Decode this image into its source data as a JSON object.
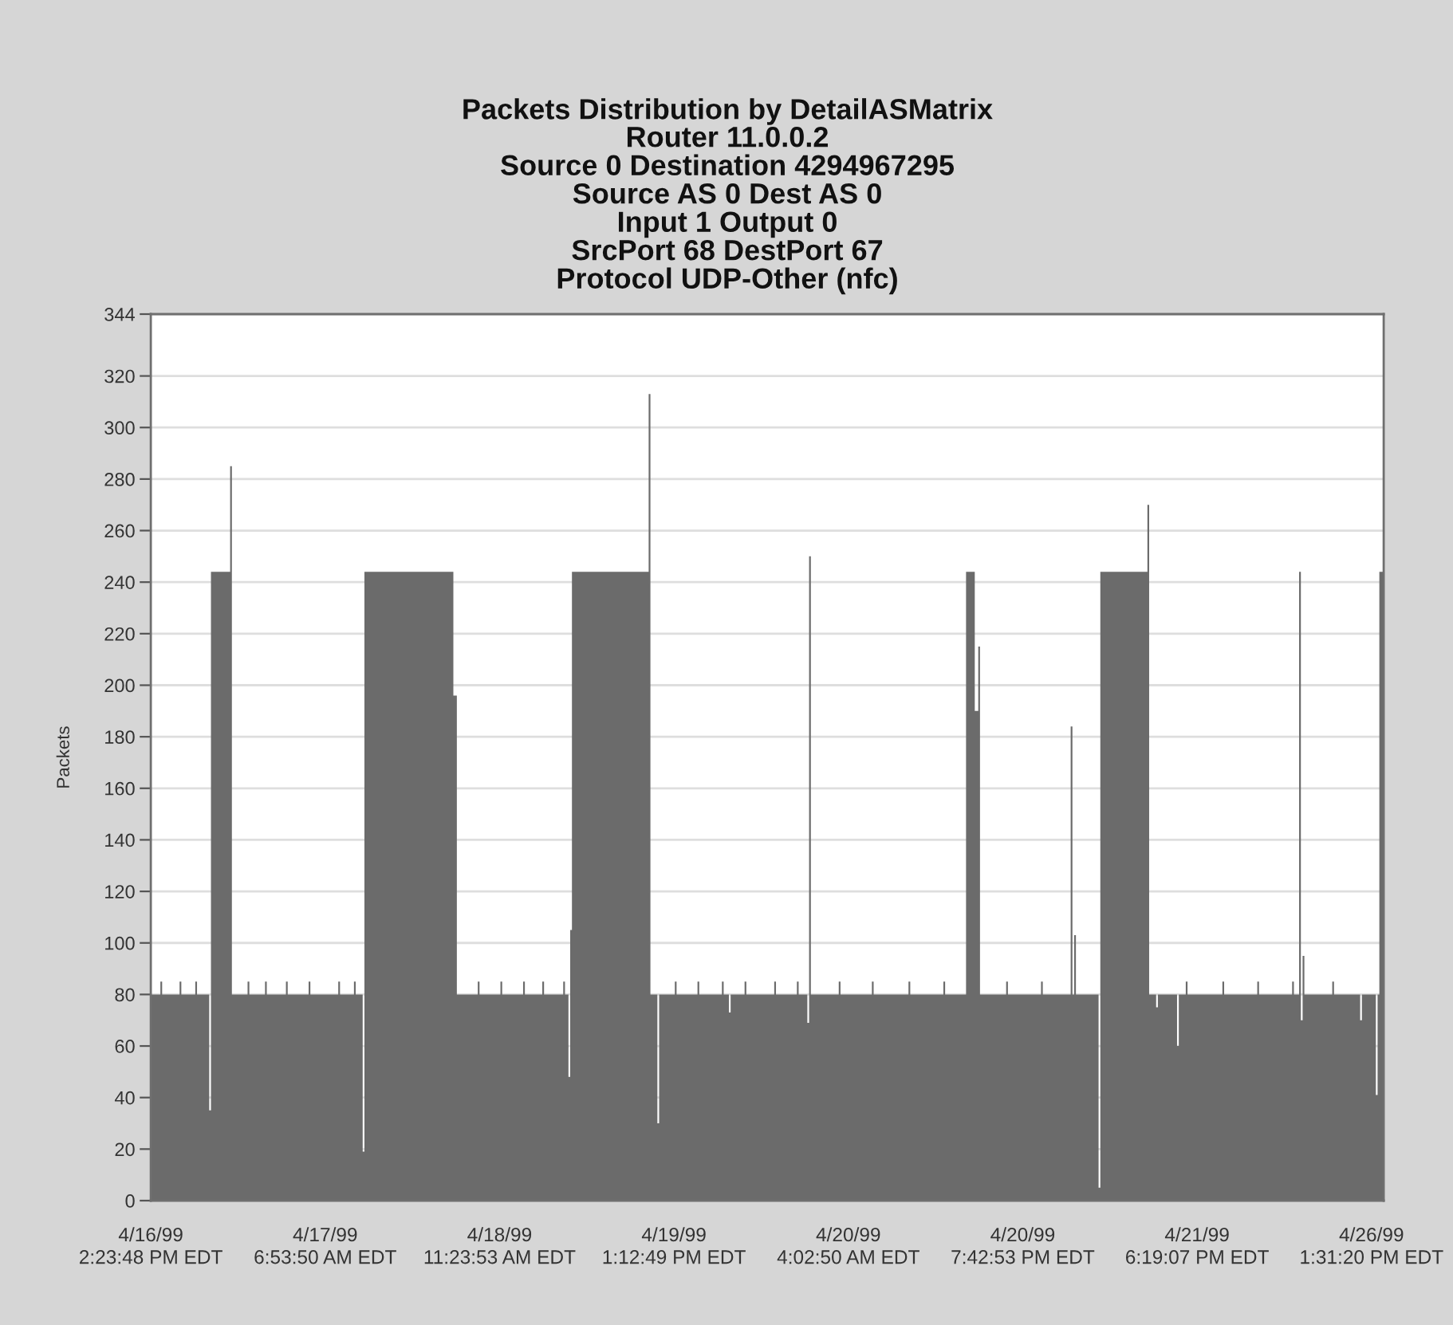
{
  "chart_data": {
    "type": "area",
    "title": "Packets Distribution by DetailASMatrix",
    "subtitle": "Router 11.0.0.2\nSource 0 Destination 4294967295\nSource AS 0 Dest AS 0\nInput 1 Output 0\nSrcPort 68 DestPort 67\nProtocol UDP-Other (nfc)",
    "ylabel": "Packets",
    "color": "#6b6b6b",
    "categories": [
      "4/16/99\n2:23:48 PM EDT",
      null,
      null,
      null,
      null,
      null,
      null,
      null,
      null,
      null,
      null,
      null,
      null,
      null,
      null,
      null,
      null,
      null,
      null,
      null,
      null,
      null,
      null,
      null,
      null,
      null,
      null,
      null,
      null,
      null,
      null,
      null,
      null,
      null,
      null,
      null,
      null,
      null,
      null,
      null,
      null,
      null,
      null,
      null,
      null,
      null,
      null,
      null,
      null,
      null,
      null,
      null,
      null,
      null,
      null,
      null,
      null,
      null,
      null,
      null,
      null,
      null,
      null,
      null,
      null,
      null,
      null,
      null,
      null,
      null,
      null,
      null,
      null,
      null,
      null,
      null,
      null,
      null,
      null,
      null,
      null,
      null,
      null,
      null,
      null,
      null,
      null,
      null,
      null,
      null,
      null,
      null,
      null,
      null,
      null,
      null,
      null,
      null,
      null,
      null,
      "4/17/99\n6:53:50 AM EDT",
      null,
      null,
      null,
      null,
      null,
      null,
      null,
      null,
      null,
      null,
      null,
      null,
      null,
      null,
      null,
      null,
      null,
      null,
      null,
      null,
      null,
      null,
      null,
      null,
      null,
      null,
      null,
      null,
      null,
      null,
      null,
      null,
      null,
      null,
      null,
      null,
      null,
      null,
      null,
      null,
      null,
      null,
      null,
      null,
      null,
      null,
      null,
      null,
      null,
      null,
      null,
      null,
      null,
      null,
      null,
      null,
      null,
      null,
      null,
      null,
      null,
      null,
      null,
      null,
      null,
      null,
      null,
      null,
      null,
      null,
      null,
      null,
      null,
      null,
      null,
      null,
      null,
      null,
      null,
      null,
      null,
      null,
      null,
      null,
      null,
      null,
      null,
      null,
      null,
      null,
      null,
      null,
      null,
      null,
      null,
      null,
      null,
      null,
      null,
      "4/18/99\n11:23:53 AM EDT",
      null,
      null,
      null,
      null,
      null,
      null,
      null,
      null,
      null,
      null,
      null,
      null,
      null,
      null,
      null,
      null,
      null,
      null,
      null,
      null,
      null,
      null,
      null,
      null,
      null,
      null,
      null,
      null,
      null,
      null,
      null,
      null,
      null,
      null,
      null,
      null,
      null,
      null,
      null,
      null,
      null,
      null,
      null,
      null,
      null,
      null,
      null,
      null,
      null,
      null,
      null,
      null,
      null,
      null,
      null,
      null,
      null,
      null,
      null,
      null,
      null,
      null,
      null,
      null,
      null,
      null,
      null,
      null,
      null,
      null,
      null,
      null,
      null,
      null,
      null,
      null,
      null,
      null,
      null,
      null,
      null,
      null,
      null,
      null,
      null,
      null,
      null,
      null,
      null,
      null,
      null,
      null,
      null,
      null,
      null,
      null,
      null,
      null,
      null,
      "4/19/99\n1:12:49 PM EDT",
      null,
      null,
      null,
      null,
      null,
      null,
      null,
      null,
      null,
      null,
      null,
      null,
      null,
      null,
      null,
      null,
      null,
      null,
      null,
      null,
      null,
      null,
      null,
      null,
      null,
      null,
      null,
      null,
      null,
      null,
      null,
      null,
      null,
      null,
      null,
      null,
      null,
      null,
      null,
      null,
      null,
      null,
      null,
      null,
      null,
      null,
      null,
      null,
      null,
      null,
      null,
      null,
      null,
      null,
      null,
      null,
      null,
      null,
      null,
      null,
      null,
      null,
      null,
      null,
      null,
      null,
      null,
      null,
      null,
      null,
      null,
      null,
      null,
      null,
      null,
      null,
      null,
      null,
      null,
      null,
      null,
      null,
      null,
      null,
      null,
      null,
      null,
      null,
      null,
      null,
      null,
      null,
      null,
      null,
      null,
      null,
      null,
      null,
      null,
      "4/20/99\n4:02:50 AM EDT",
      null,
      null,
      null,
      null,
      null,
      null,
      null,
      null,
      null,
      null,
      null,
      null,
      null,
      null,
      null,
      null,
      null,
      null,
      null,
      null,
      null,
      null,
      null,
      null,
      null,
      null,
      null,
      null,
      null,
      null,
      null,
      null,
      null,
      null,
      null,
      null,
      null,
      null,
      null,
      null,
      null,
      null,
      null,
      null,
      null,
      null,
      null,
      null,
      null,
      null,
      null,
      null,
      null,
      null,
      null,
      null,
      null,
      null,
      null,
      null,
      null,
      null,
      null,
      null,
      null,
      null,
      null,
      null,
      null,
      null,
      null,
      null,
      null,
      null,
      null,
      null,
      null,
      null,
      null,
      null,
      null,
      null,
      null,
      null,
      null,
      null,
      null,
      null,
      null,
      null,
      null,
      null,
      null,
      null,
      null,
      null,
      null,
      null,
      null,
      "4/20/99\n7:42:53 PM EDT",
      null,
      null,
      null,
      null,
      null,
      null,
      null,
      null,
      null,
      null,
      null,
      null,
      null,
      null,
      null,
      null,
      null,
      null,
      null,
      null,
      null,
      null,
      null,
      null,
      null,
      null,
      null,
      null,
      null,
      null,
      null,
      null,
      null,
      null,
      null,
      null,
      null,
      null,
      null,
      null,
      null,
      null,
      null,
      null,
      null,
      null,
      null,
      null,
      null,
      null,
      null,
      null,
      null,
      null,
      null,
      null,
      null,
      null,
      null,
      null,
      null,
      null,
      null,
      null,
      null,
      null,
      null,
      null,
      null,
      null,
      null,
      null,
      null,
      null,
      null,
      null,
      null,
      null,
      null,
      null,
      null,
      null,
      null,
      null,
      null,
      null,
      null,
      null,
      null,
      null,
      null,
      null,
      null,
      null,
      null,
      null,
      null,
      null,
      null,
      "4/21/99\n6:19:07 PM EDT",
      null,
      null,
      null,
      null,
      null,
      null,
      null,
      null,
      null,
      null,
      null,
      null,
      null,
      null,
      null,
      null,
      null,
      null,
      null,
      null,
      null,
      null,
      null,
      null,
      null,
      null,
      null,
      null,
      null,
      null,
      null,
      null,
      null,
      null,
      null,
      null,
      null,
      null,
      null,
      null,
      null,
      null,
      null,
      null,
      null,
      null,
      null,
      null,
      null,
      null,
      null,
      null,
      null,
      null,
      null,
      null,
      null,
      null,
      null,
      null,
      null,
      null,
      null,
      null,
      null,
      null,
      null,
      null,
      null,
      null,
      null,
      null,
      null,
      null,
      null,
      null,
      null,
      null,
      null,
      null,
      null,
      null,
      null,
      null,
      null,
      null,
      null,
      null,
      null,
      null,
      null,
      null,
      null,
      null,
      null,
      null,
      null,
      null,
      null,
      "4/26/99\n1:31:20 PM EDT",
      null,
      null,
      null,
      null,
      null,
      null,
      null
    ],
    "values": [
      80,
      80,
      80,
      80,
      80,
      80,
      85,
      80,
      80,
      80,
      80,
      80,
      80,
      80,
      80,
      80,
      80,
      85,
      80,
      80,
      80,
      80,
      80,
      80,
      80,
      80,
      85,
      80,
      80,
      80,
      80,
      80,
      80,
      80,
      35,
      244,
      244,
      244,
      244,
      244,
      244,
      244,
      244,
      244,
      244,
      244,
      285,
      80,
      80,
      80,
      80,
      80,
      80,
      80,
      80,
      80,
      85,
      80,
      80,
      80,
      80,
      80,
      80,
      80,
      80,
      80,
      85,
      80,
      80,
      80,
      80,
      80,
      80,
      80,
      80,
      80,
      80,
      80,
      85,
      80,
      80,
      80,
      80,
      80,
      80,
      80,
      80,
      80,
      80,
      80,
      80,
      85,
      80,
      80,
      80,
      80,
      80,
      80,
      80,
      80,
      80,
      80,
      80,
      80,
      80,
      80,
      80,
      80,
      85,
      80,
      80,
      80,
      80,
      80,
      80,
      80,
      80,
      85,
      80,
      80,
      80,
      80,
      19,
      244,
      244,
      244,
      244,
      244,
      244,
      244,
      244,
      244,
      244,
      244,
      244,
      244,
      244,
      244,
      244,
      244,
      244,
      244,
      244,
      244,
      244,
      244,
      244,
      244,
      244,
      244,
      244,
      244,
      244,
      244,
      244,
      244,
      244,
      244,
      244,
      244,
      244,
      244,
      244,
      244,
      244,
      244,
      244,
      244,
      244,
      244,
      244,
      244,
      244,
      244,
      196,
      196,
      80,
      80,
      80,
      80,
      80,
      80,
      80,
      80,
      80,
      80,
      80,
      80,
      85,
      80,
      80,
      80,
      80,
      80,
      80,
      80,
      80,
      80,
      80,
      80,
      80,
      85,
      80,
      80,
      80,
      80,
      80,
      80,
      80,
      80,
      80,
      80,
      80,
      80,
      85,
      80,
      80,
      80,
      80,
      80,
      80,
      80,
      80,
      80,
      80,
      85,
      80,
      80,
      80,
      80,
      80,
      80,
      80,
      80,
      80,
      80,
      80,
      85,
      80,
      80,
      48,
      105,
      244,
      244,
      244,
      244,
      244,
      244,
      244,
      244,
      244,
      244,
      244,
      244,
      244,
      244,
      244,
      244,
      244,
      244,
      244,
      244,
      244,
      244,
      244,
      244,
      244,
      244,
      244,
      244,
      244,
      244,
      244,
      244,
      244,
      244,
      244,
      244,
      244,
      244,
      244,
      244,
      244,
      244,
      244,
      244,
      313,
      80,
      80,
      80,
      80,
      30,
      80,
      80,
      80,
      80,
      80,
      80,
      80,
      80,
      80,
      85,
      80,
      80,
      80,
      80,
      80,
      80,
      80,
      80,
      80,
      80,
      80,
      80,
      85,
      80,
      80,
      80,
      80,
      80,
      80,
      80,
      80,
      80,
      80,
      80,
      80,
      80,
      85,
      80,
      80,
      80,
      73,
      80,
      80,
      80,
      80,
      80,
      80,
      80,
      80,
      85,
      80,
      80,
      80,
      80,
      80,
      80,
      80,
      80,
      80,
      80,
      80,
      80,
      80,
      80,
      80,
      80,
      85,
      80,
      80,
      80,
      80,
      80,
      80,
      80,
      80,
      80,
      80,
      80,
      80,
      85,
      80,
      80,
      80,
      80,
      80,
      69,
      250,
      80,
      80,
      80,
      80,
      80,
      80,
      80,
      80,
      80,
      80,
      80,
      80,
      80,
      80,
      80,
      80,
      85,
      80,
      80,
      80,
      80,
      80,
      80,
      80,
      80,
      80,
      80,
      80,
      80,
      80,
      80,
      80,
      80,
      80,
      80,
      85,
      80,
      80,
      80,
      80,
      80,
      80,
      80,
      80,
      80,
      80,
      80,
      80,
      80,
      80,
      80,
      80,
      80,
      80,
      80,
      80,
      85,
      80,
      80,
      80,
      80,
      80,
      80,
      80,
      80,
      80,
      80,
      80,
      80,
      80,
      80,
      80,
      80,
      80,
      80,
      80,
      85,
      80,
      80,
      80,
      80,
      80,
      80,
      80,
      80,
      80,
      80,
      80,
      80,
      244,
      244,
      244,
      244,
      244,
      190,
      190,
      215,
      80,
      80,
      80,
      80,
      80,
      80,
      80,
      80,
      80,
      80,
      80,
      80,
      80,
      80,
      80,
      85,
      80,
      80,
      80,
      80,
      80,
      80,
      80,
      80,
      80,
      80,
      80,
      80,
      80,
      80,
      80,
      80,
      80,
      80,
      80,
      85,
      80,
      80,
      80,
      80,
      80,
      80,
      80,
      80,
      80,
      80,
      80,
      80,
      80,
      80,
      80,
      80,
      184,
      80,
      103,
      80,
      80,
      80,
      80,
      80,
      80,
      80,
      80,
      80,
      80,
      80,
      80,
      80,
      5,
      244,
      244,
      244,
      244,
      244,
      244,
      244,
      244,
      244,
      244,
      244,
      244,
      244,
      244,
      244,
      244,
      244,
      244,
      244,
      244,
      244,
      244,
      244,
      244,
      244,
      244,
      244,
      270,
      80,
      80,
      80,
      80,
      75,
      80,
      80,
      80,
      80,
      80,
      80,
      80,
      80,
      80,
      80,
      80,
      60,
      80,
      80,
      80,
      80,
      85,
      80,
      80,
      80,
      80,
      80,
      80,
      80,
      80,
      80,
      80,
      80,
      80,
      80,
      80,
      80,
      80,
      80,
      80,
      80,
      80,
      85,
      80,
      80,
      80,
      80,
      80,
      80,
      80,
      80,
      80,
      80,
      80,
      80,
      80,
      80,
      80,
      80,
      80,
      80,
      80,
      85,
      80,
      80,
      80,
      80,
      80,
      80,
      80,
      80,
      80,
      80,
      80,
      80,
      80,
      80,
      80,
      80,
      80,
      80,
      80,
      85,
      80,
      80,
      80,
      244,
      70,
      95,
      80,
      80,
      80,
      80,
      80,
      80,
      80,
      80,
      80,
      80,
      80,
      80,
      80,
      80,
      80,
      80,
      85,
      80,
      80,
      80,
      80,
      80,
      80,
      80,
      80,
      80,
      80,
      80,
      80,
      80,
      80,
      80,
      70,
      80,
      80,
      80,
      80,
      80,
      80,
      80,
      80,
      41,
      80,
      244,
      244,
      244
    ],
    "ylim": [
      0,
      344
    ],
    "yticks": [
      0,
      20,
      40,
      60,
      80,
      100,
      120,
      140,
      160,
      180,
      200,
      220,
      240,
      260,
      280,
      300,
      320,
      344
    ],
    "grid": "y"
  }
}
